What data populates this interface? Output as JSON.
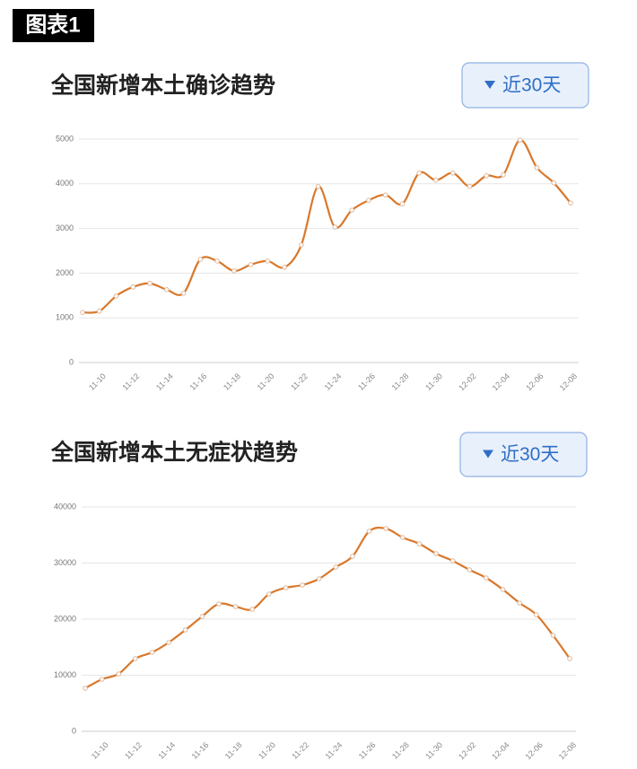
{
  "figure_label": "图表1",
  "chart_data": [
    {
      "type": "line",
      "title": "全国新增本土确诊趋势",
      "filter_label": "近30天",
      "categories": [
        null,
        "11-10",
        null,
        "11-12",
        null,
        "11-14",
        null,
        "11-16",
        null,
        "11-18",
        null,
        "11-20",
        null,
        "11-22",
        null,
        "11-24",
        null,
        "11-26",
        null,
        "11-28",
        null,
        "11-30",
        null,
        "12-02",
        null,
        "12-04",
        null,
        "12-06",
        null,
        "12-08"
      ],
      "series": [
        {
          "color": "#d9782b",
          "values": [
            1120,
            1150,
            1490,
            1690,
            1770,
            1630,
            1550,
            2310,
            2270,
            2050,
            2190,
            2270,
            2130,
            2630,
            3940,
            3030,
            3410,
            3630,
            3750,
            3550,
            4240,
            4080,
            4240,
            3940,
            4180,
            4200,
            4980,
            4360,
            4020,
            3570
          ]
        }
      ],
      "ylim": [
        0,
        5000
      ],
      "yticks": [
        0,
        1000,
        2000,
        3000,
        4000,
        5000
      ],
      "grid": true
    },
    {
      "type": "line",
      "title": "全国新增本土无症状趋势",
      "filter_label": "近30天",
      "categories": [
        null,
        "11-10",
        null,
        "11-12",
        null,
        "11-14",
        null,
        "11-16",
        null,
        "11-18",
        null,
        "11-20",
        null,
        "11-22",
        null,
        "11-24",
        null,
        "11-26",
        null,
        "11-28",
        null,
        "11-30",
        null,
        "12-02",
        null,
        "12-04",
        null,
        "12-06",
        null,
        "12-08"
      ],
      "series": [
        {
          "color": "#d9782b",
          "values": [
            7680,
            9280,
            10240,
            12960,
            14080,
            15840,
            18080,
            20480,
            22720,
            22240,
            21760,
            24480,
            25600,
            26080,
            27200,
            29280,
            31200,
            35680,
            36160,
            34560,
            33440,
            31680,
            30400,
            28800,
            27360,
            25280,
            22880,
            20800,
            17120,
            12960
          ]
        }
      ],
      "ylim": [
        0,
        40000
      ],
      "yticks": [
        0,
        10000,
        20000,
        30000,
        40000
      ],
      "grid": true
    }
  ]
}
